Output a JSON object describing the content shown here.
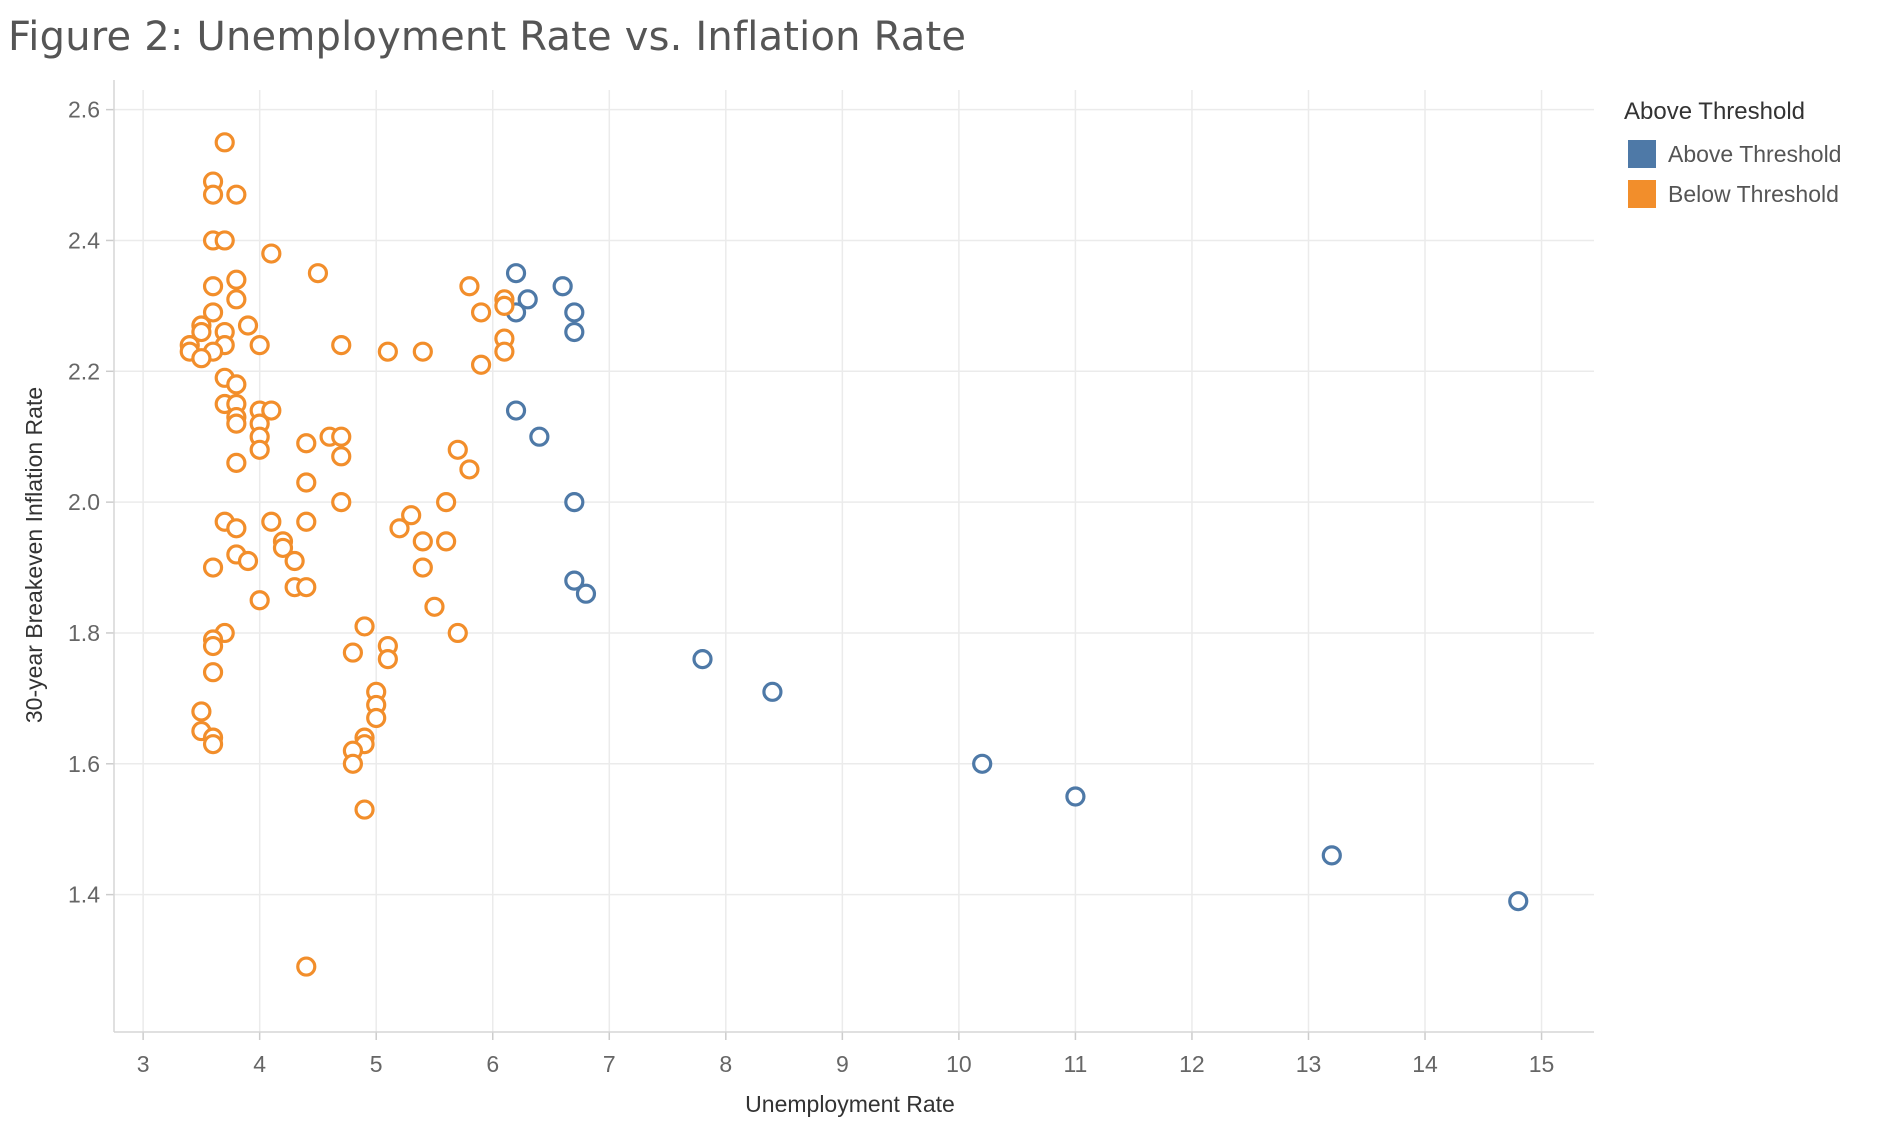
{
  "chart_data": {
    "type": "scatter",
    "title": "Figure 2: Unemployment Rate vs. Inflation Rate",
    "xlabel": "Unemployment Rate",
    "ylabel": "30-year Breakeven Inflation Rate",
    "xlim": [
      2.75,
      15.45
    ],
    "ylim": [
      1.19,
      2.63
    ],
    "xticks": [
      3,
      4,
      5,
      6,
      7,
      8,
      9,
      10,
      11,
      12,
      13,
      14,
      15
    ],
    "yticks": [
      1.4,
      1.6,
      1.8,
      2.0,
      2.2,
      2.4,
      2.6
    ],
    "ytick_labels": [
      "1.4",
      "1.6",
      "1.8",
      "2.0",
      "2.2",
      "2.4",
      "2.6"
    ],
    "grid": true,
    "marker": "open-circle",
    "legend": {
      "title": "Above Threshold",
      "placement": "right"
    },
    "series": [
      {
        "name": "Above Threshold",
        "color": "#4e79a7",
        "points": [
          [
            6.2,
            2.35
          ],
          [
            6.6,
            2.33
          ],
          [
            6.3,
            2.31
          ],
          [
            6.2,
            2.29
          ],
          [
            6.7,
            2.29
          ],
          [
            6.7,
            2.26
          ],
          [
            6.2,
            2.14
          ],
          [
            6.4,
            2.1
          ],
          [
            6.7,
            2.0
          ],
          [
            6.7,
            1.88
          ],
          [
            6.8,
            1.86
          ],
          [
            7.8,
            1.76
          ],
          [
            8.4,
            1.71
          ],
          [
            10.2,
            1.6
          ],
          [
            11.0,
            1.55
          ],
          [
            13.2,
            1.46
          ],
          [
            14.8,
            1.39
          ]
        ]
      },
      {
        "name": "Below Threshold",
        "color": "#f28e2b",
        "points": [
          [
            3.7,
            2.55
          ],
          [
            3.6,
            2.49
          ],
          [
            3.6,
            2.47
          ],
          [
            3.8,
            2.47
          ],
          [
            3.6,
            2.4
          ],
          [
            3.7,
            2.4
          ],
          [
            4.1,
            2.38
          ],
          [
            4.5,
            2.35
          ],
          [
            3.8,
            2.34
          ],
          [
            3.6,
            2.33
          ],
          [
            3.8,
            2.31
          ],
          [
            3.6,
            2.29
          ],
          [
            3.9,
            2.27
          ],
          [
            3.5,
            2.27
          ],
          [
            3.7,
            2.26
          ],
          [
            3.5,
            2.26
          ],
          [
            3.4,
            2.24
          ],
          [
            3.7,
            2.24
          ],
          [
            4.0,
            2.24
          ],
          [
            4.7,
            2.24
          ],
          [
            3.4,
            2.23
          ],
          [
            3.6,
            2.23
          ],
          [
            3.5,
            2.22
          ],
          [
            3.7,
            2.19
          ],
          [
            3.8,
            2.18
          ],
          [
            3.7,
            2.15
          ],
          [
            3.8,
            2.15
          ],
          [
            4.0,
            2.14
          ],
          [
            4.1,
            2.14
          ],
          [
            3.8,
            2.13
          ],
          [
            3.8,
            2.12
          ],
          [
            4.0,
            2.12
          ],
          [
            4.0,
            2.1
          ],
          [
            4.6,
            2.1
          ],
          [
            4.7,
            2.1
          ],
          [
            4.4,
            2.09
          ],
          [
            4.0,
            2.08
          ],
          [
            4.7,
            2.07
          ],
          [
            3.8,
            2.06
          ],
          [
            4.4,
            2.03
          ],
          [
            4.7,
            2.0
          ],
          [
            3.7,
            1.97
          ],
          [
            4.1,
            1.97
          ],
          [
            4.4,
            1.97
          ],
          [
            3.8,
            1.96
          ],
          [
            4.2,
            1.94
          ],
          [
            4.2,
            1.93
          ],
          [
            3.8,
            1.92
          ],
          [
            3.9,
            1.91
          ],
          [
            4.3,
            1.91
          ],
          [
            3.6,
            1.9
          ],
          [
            4.3,
            1.87
          ],
          [
            4.4,
            1.87
          ],
          [
            4.0,
            1.85
          ],
          [
            3.7,
            1.8
          ],
          [
            3.6,
            1.79
          ],
          [
            3.6,
            1.78
          ],
          [
            3.6,
            1.74
          ],
          [
            3.5,
            1.68
          ],
          [
            3.5,
            1.65
          ],
          [
            3.6,
            1.64
          ],
          [
            3.6,
            1.63
          ],
          [
            4.4,
            1.29
          ],
          [
            4.9,
            1.81
          ],
          [
            4.8,
            1.77
          ],
          [
            5.1,
            1.78
          ],
          [
            5.1,
            1.76
          ],
          [
            5.0,
            1.71
          ],
          [
            5.0,
            1.69
          ],
          [
            5.0,
            1.67
          ],
          [
            4.9,
            1.64
          ],
          [
            4.9,
            1.63
          ],
          [
            4.8,
            1.62
          ],
          [
            4.8,
            1.6
          ],
          [
            4.9,
            1.53
          ],
          [
            5.1,
            2.23
          ],
          [
            5.4,
            2.23
          ],
          [
            5.3,
            1.98
          ],
          [
            5.2,
            1.96
          ],
          [
            5.4,
            1.94
          ],
          [
            5.6,
            1.94
          ],
          [
            5.4,
            1.9
          ],
          [
            5.5,
            1.84
          ],
          [
            5.7,
            1.8
          ],
          [
            5.6,
            2.0
          ],
          [
            5.7,
            2.08
          ],
          [
            5.8,
            2.05
          ],
          [
            5.8,
            2.33
          ],
          [
            6.1,
            2.31
          ],
          [
            6.1,
            2.3
          ],
          [
            5.9,
            2.29
          ],
          [
            6.1,
            2.25
          ],
          [
            6.1,
            2.23
          ],
          [
            5.9,
            2.21
          ]
        ]
      }
    ]
  }
}
